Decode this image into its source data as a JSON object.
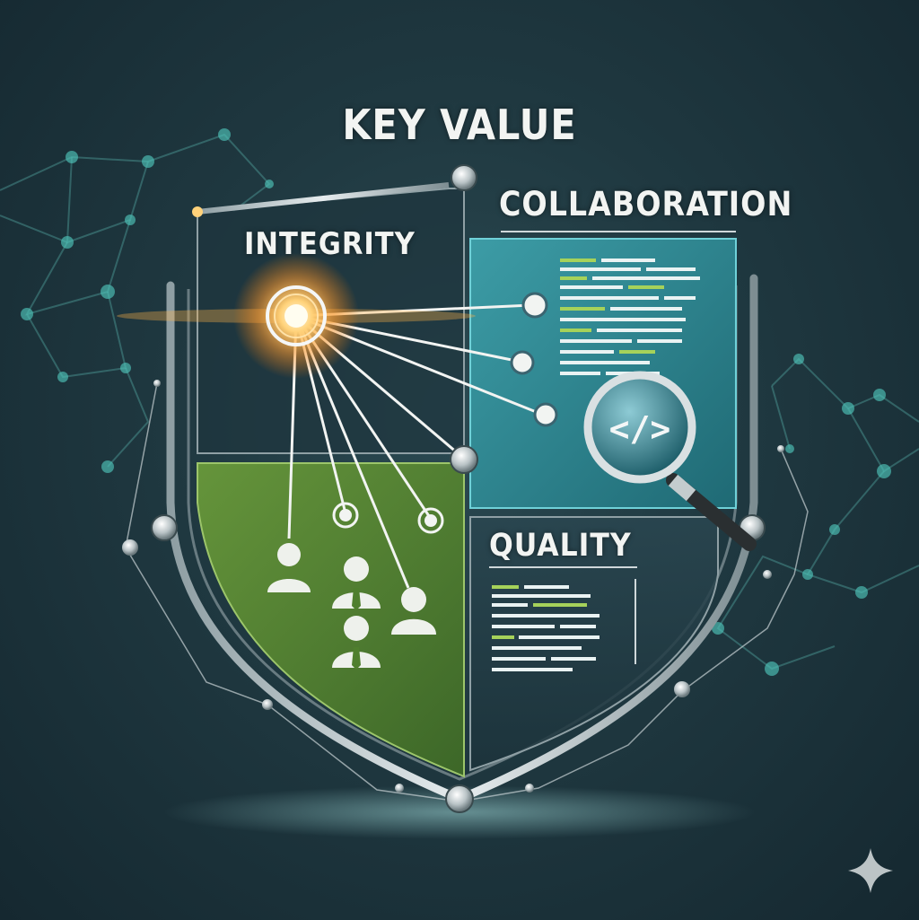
{
  "title": "KEY VALUE",
  "sections": {
    "integrity": "INTEGRITY",
    "collaboration": "COLLABORATION",
    "quality": "QUALITY"
  },
  "icons": {
    "magnifier_code": "</>"
  },
  "colors": {
    "background": "#1f3840",
    "integrity_panel": "#4f7f2e",
    "collaboration_panel": "#2a8a96",
    "quality_panel": "#24404a",
    "glow": "#ffb347",
    "network": "#4fc3b8"
  }
}
